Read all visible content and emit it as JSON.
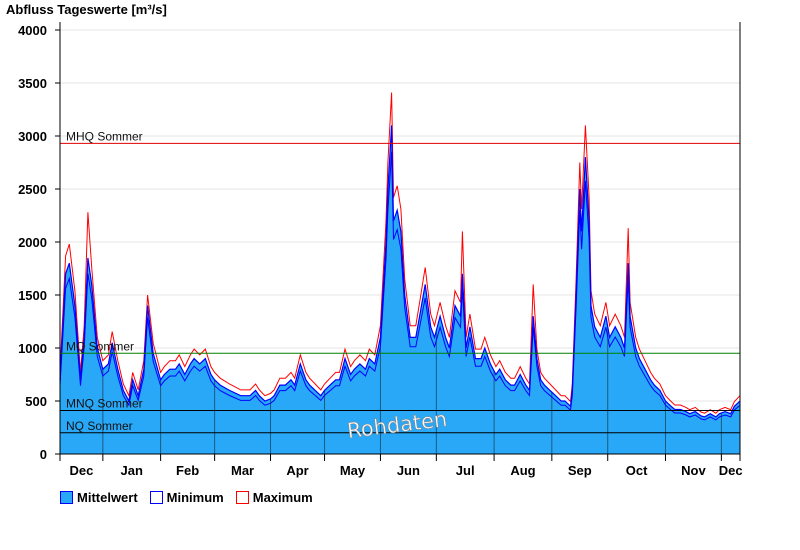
{
  "chart_data": {
    "type": "area",
    "title": "Abfluss Tageswerte [m³/s]",
    "ylim": [
      0,
      4000
    ],
    "yticks": [
      "0",
      "500",
      "1000",
      "1500",
      "2000",
      "2500",
      "3000",
      "3500",
      "4000"
    ],
    "xlim_days": [
      0,
      365
    ],
    "month_boundaries_days": [
      23,
      54,
      83,
      113,
      142,
      172,
      202,
      233,
      264,
      294,
      325,
      355
    ],
    "month_labels": [
      "Dec",
      "Jan",
      "Feb",
      "Mar",
      "Apr",
      "May",
      "Jun",
      "Jul",
      "Aug",
      "Sep",
      "Oct",
      "Nov",
      "Dec"
    ],
    "reference_lines": [
      {
        "label": "MHQ Sommer",
        "value": 2930,
        "color": "#e00000"
      },
      {
        "label": "MQ Sommer",
        "value": 950,
        "color": "#008000"
      },
      {
        "label": "MNQ Sommer",
        "value": 410,
        "color": "#000000"
      },
      {
        "label": "NQ Sommer",
        "value": 200,
        "color": "#000000"
      }
    ],
    "series": [
      {
        "name": "Mittelwert",
        "color": "#29a8f8"
      },
      {
        "name": "Minimum",
        "color": "#0000ff",
        "ratio_to_mean": 0.92
      },
      {
        "name": "Maximum",
        "color": "#ff0000",
        "ratio_to_mean": 1.1
      }
    ],
    "mittelwert_days": [
      0,
      3,
      5,
      8,
      11,
      13,
      15,
      17,
      20,
      23,
      26,
      28,
      31,
      34,
      37,
      39,
      42,
      45,
      47,
      50,
      54,
      56,
      59,
      62,
      64,
      67,
      70,
      72,
      75,
      78,
      81,
      83,
      86,
      91,
      97,
      102,
      105,
      107,
      110,
      113,
      115,
      118,
      121,
      124,
      126,
      129,
      132,
      134,
      137,
      140,
      142,
      145,
      148,
      150,
      153,
      156,
      158,
      161,
      164,
      166,
      169,
      172,
      175,
      176,
      178,
      179,
      181,
      183,
      185,
      188,
      191,
      193,
      196,
      199,
      201,
      204,
      207,
      209,
      212,
      215,
      216,
      218,
      220,
      223,
      226,
      228,
      231,
      234,
      236,
      239,
      242,
      244,
      247,
      250,
      252,
      254,
      256,
      258,
      260,
      263,
      266,
      269,
      271,
      274,
      275,
      277,
      279,
      280,
      282,
      284,
      285,
      287,
      290,
      293,
      295,
      298,
      301,
      303,
      305,
      306,
      309,
      311,
      314,
      317,
      319,
      322,
      325,
      328,
      330,
      333,
      336,
      338,
      341,
      344,
      346,
      349,
      352,
      354,
      357,
      360,
      362,
      365
    ],
    "mittelwert": [
      700,
      1700,
      1800,
      1400,
      700,
      1100,
      1850,
      1600,
      1000,
      800,
      850,
      1050,
      800,
      600,
      500,
      700,
      550,
      800,
      1400,
      950,
      700,
      750,
      800,
      800,
      850,
      750,
      850,
      900,
      850,
      900,
      750,
      700,
      650,
      600,
      550,
      550,
      600,
      550,
      500,
      520,
      550,
      650,
      650,
      700,
      650,
      850,
      700,
      650,
      600,
      550,
      600,
      650,
      700,
      700,
      900,
      750,
      800,
      850,
      800,
      900,
      850,
      1100,
      2000,
      2500,
      3100,
      2200,
      2300,
      2100,
      1500,
      1100,
      1100,
      1300,
      1600,
      1200,
      1100,
      1300,
      1100,
      1000,
      1400,
      1300,
      1700,
      1000,
      1200,
      900,
      900,
      1000,
      850,
      750,
      800,
      700,
      650,
      650,
      750,
      650,
      600,
      1300,
      900,
      700,
      650,
      600,
      550,
      500,
      500,
      450,
      600,
      1500,
      2500,
      2100,
      2800,
      2200,
      1400,
      1200,
      1100,
      1300,
      1100,
      1200,
      1100,
      1000,
      1800,
      1300,
      1000,
      900,
      800,
      700,
      650,
      600,
      500,
      450,
      420,
      420,
      400,
      380,
      400,
      360,
      350,
      380,
      350,
      380,
      400,
      380,
      450,
      500
    ],
    "maximum_peaks": [
      [
        15,
        2280
      ],
      [
        47,
        1500
      ],
      [
        177,
        3780
      ],
      [
        216,
        2100
      ],
      [
        254,
        1600
      ],
      [
        282,
        3100
      ],
      [
        305,
        2130
      ]
    ]
  },
  "legend": [
    "Mittelwert",
    "Minimum",
    "Maximum"
  ],
  "watermark": "Rohdaten"
}
